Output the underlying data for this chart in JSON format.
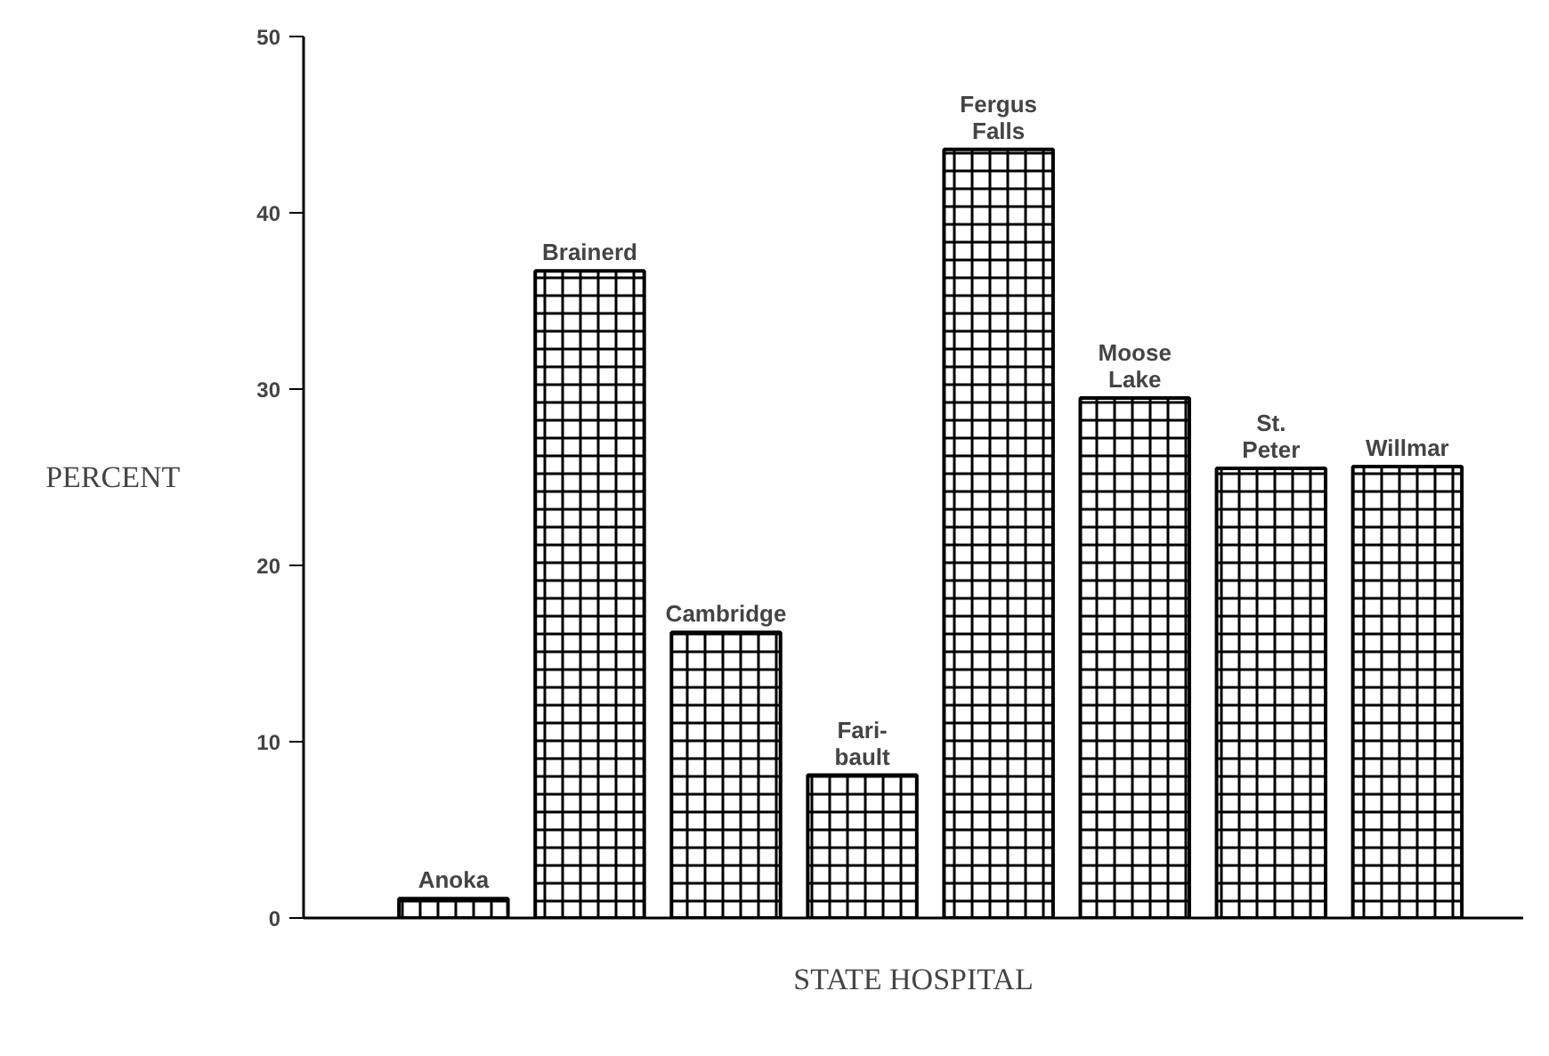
{
  "chart_data": {
    "type": "bar",
    "xlabel": "STATE HOSPITAL",
    "ylabel": "PERCENT",
    "categories": [
      "Anoka",
      "Brainerd",
      "Cambridge",
      "Fari-\nbault",
      "Fergus\nFalls",
      "Moose\nLake",
      "St.\nPeter",
      "Willmar"
    ],
    "values": [
      1.1,
      36.7,
      16.2,
      8.1,
      43.6,
      29.5,
      25.5,
      25.6
    ],
    "color": "#000000",
    "ylim": [
      0,
      50
    ],
    "yticks": [
      0,
      10,
      20,
      30,
      40,
      50
    ],
    "grid": false,
    "tick_labels": "y"
  }
}
